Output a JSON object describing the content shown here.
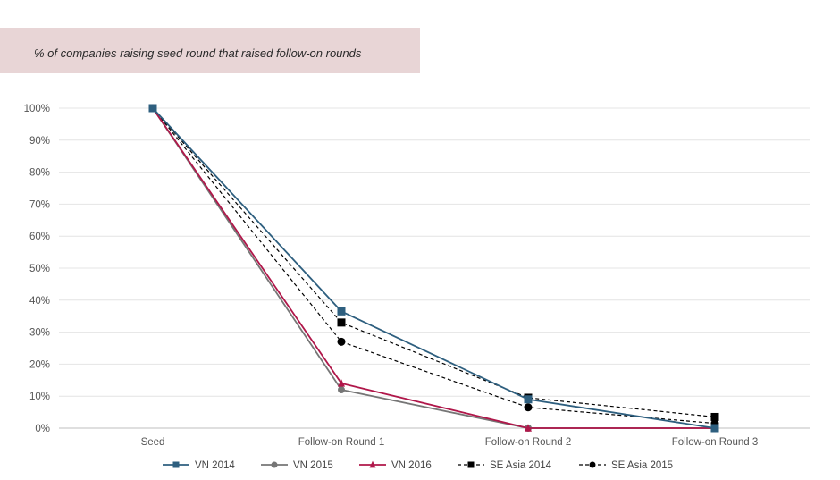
{
  "chart_data": {
    "type": "line",
    "title": "% of companies raising seed round that raised follow-on rounds",
    "xlabel": "",
    "ylabel": "",
    "categories": [
      "Seed",
      "Follow-on Round 1",
      "Follow-on Round 2",
      "Follow-on Round 3"
    ],
    "ylim": [
      0,
      100
    ],
    "yticks": [
      "0%",
      "10%",
      "20%",
      "30%",
      "40%",
      "50%",
      "60%",
      "70%",
      "80%",
      "90%",
      "100%"
    ],
    "grid": true,
    "legend_position": "bottom",
    "series": [
      {
        "name": "VN 2014",
        "values": [
          100,
          36.5,
          9,
          0
        ],
        "color": "#2e5f7f",
        "marker": "square",
        "dashed": false
      },
      {
        "name": "VN 2015",
        "values": [
          100,
          12,
          0,
          0
        ],
        "color": "#767676",
        "marker": "circle",
        "dashed": false
      },
      {
        "name": "VN 2016",
        "values": [
          100,
          14,
          0,
          0
        ],
        "color": "#b0174a",
        "marker": "triangle",
        "dashed": false
      },
      {
        "name": "SE Asia 2014",
        "values": [
          100,
          33,
          9.5,
          3.5
        ],
        "color": "#000000",
        "marker": "square",
        "dashed": true
      },
      {
        "name": "SE Asia 2015",
        "values": [
          100,
          27,
          6.5,
          1.5
        ],
        "color": "#000000",
        "marker": "circle",
        "dashed": true
      }
    ]
  }
}
